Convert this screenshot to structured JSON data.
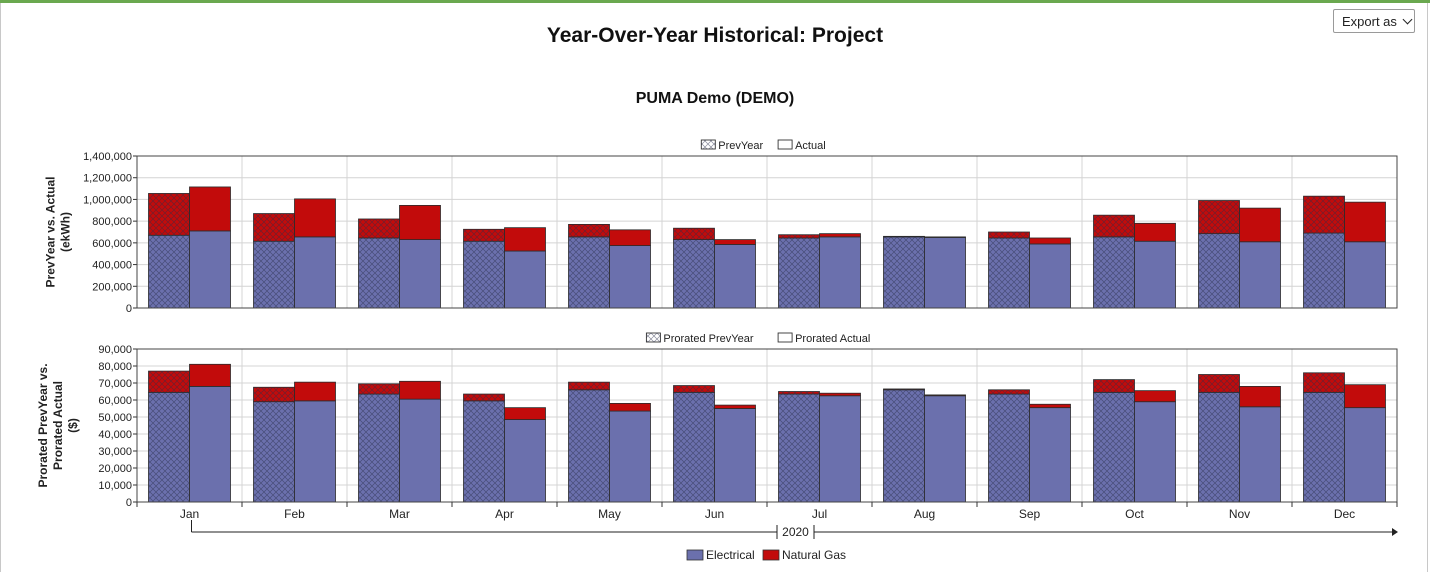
{
  "header": {
    "title": "Year-Over-Year Historical: Project",
    "subtitle": "PUMA Demo (DEMO)",
    "export_label": "Export as"
  },
  "colors": {
    "electrical": "#6b70ad",
    "natural_gas": "#c20b0b",
    "grid": "#d4d4d4"
  },
  "chart_data": [
    {
      "type": "bar",
      "stacked": true,
      "grouped": true,
      "ylabel": "PrevYear vs. Actual\n(ekWh)",
      "ylim": [
        0,
        1400000
      ],
      "yticks": [
        0,
        200000,
        400000,
        600000,
        800000,
        1000000,
        1200000,
        1400000
      ],
      "ytick_labels": [
        "0",
        "200,000",
        "400,000",
        "600,000",
        "800,000",
        "1,000,000",
        "1,200,000",
        "1,400,000"
      ],
      "legend_top": [
        "PrevYear",
        "Actual"
      ],
      "categories": [
        "Jan",
        "Feb",
        "Mar",
        "Apr",
        "May",
        "Jun",
        "Jul",
        "Aug",
        "Sep",
        "Oct",
        "Nov",
        "Dec"
      ],
      "groups": [
        {
          "name": "PrevYear",
          "pattern": "crosshatch",
          "electrical": [
            670000,
            615000,
            645000,
            615000,
            655000,
            630000,
            645000,
            655000,
            645000,
            655000,
            685000,
            690000
          ],
          "natural_gas": [
            385000,
            255000,
            175000,
            110000,
            115000,
            105000,
            30000,
            5000,
            55000,
            200000,
            305000,
            340000
          ]
        },
        {
          "name": "Actual",
          "pattern": "solid",
          "electrical": [
            710000,
            655000,
            630000,
            525000,
            575000,
            585000,
            655000,
            650000,
            590000,
            615000,
            610000,
            610000
          ],
          "natural_gas": [
            405000,
            350000,
            315000,
            215000,
            145000,
            45000,
            30000,
            5000,
            55000,
            165000,
            310000,
            365000
          ]
        }
      ]
    },
    {
      "type": "bar",
      "stacked": true,
      "grouped": true,
      "ylabel": "Prorated PrevYear vs.\nProrated Actual\n($)",
      "ylim": [
        0,
        90000
      ],
      "yticks": [
        0,
        10000,
        20000,
        30000,
        40000,
        50000,
        60000,
        70000,
        80000,
        90000
      ],
      "ytick_labels": [
        "0",
        "10,000",
        "20,000",
        "30,000",
        "40,000",
        "50,000",
        "60,000",
        "70,000",
        "80,000",
        "90,000"
      ],
      "legend_top": [
        "Prorated PrevYear",
        "Prorated Actual"
      ],
      "categories": [
        "Jan",
        "Feb",
        "Mar",
        "Apr",
        "May",
        "Jun",
        "Jul",
        "Aug",
        "Sep",
        "Oct",
        "Nov",
        "Dec"
      ],
      "groups": [
        {
          "name": "Prorated PrevYear",
          "pattern": "crosshatch",
          "electrical": [
            64500,
            59000,
            63500,
            59500,
            66000,
            64500,
            63500,
            66000,
            63500,
            64500,
            64500,
            64500
          ],
          "natural_gas": [
            12500,
            8500,
            6000,
            4000,
            4500,
            4000,
            1500,
            500,
            2500,
            7500,
            10500,
            11500
          ]
        },
        {
          "name": "Prorated Actual",
          "pattern": "solid",
          "electrical": [
            68000,
            59500,
            60500,
            48500,
            53500,
            55000,
            62500,
            62500,
            55500,
            59000,
            56000,
            55500
          ],
          "natural_gas": [
            13000,
            11000,
            10500,
            7000,
            4500,
            2000,
            1500,
            500,
            2000,
            6500,
            12000,
            13500
          ]
        }
      ]
    }
  ],
  "x_axis": {
    "year_label": "2020"
  },
  "legend_bottom": [
    "Electrical",
    "Natural Gas"
  ]
}
